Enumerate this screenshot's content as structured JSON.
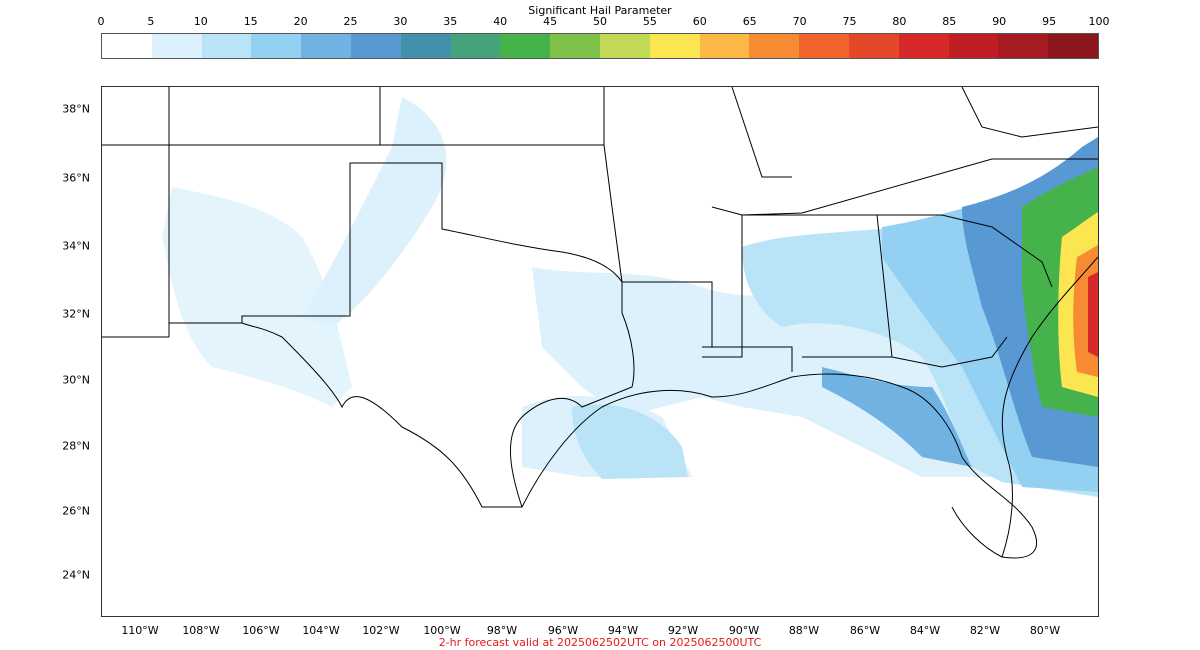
{
  "colorbar": {
    "title": "Significant Hail Parameter",
    "ticks": [
      "0",
      "5",
      "10",
      "15",
      "20",
      "25",
      "30",
      "35",
      "40",
      "45",
      "50",
      "55",
      "60",
      "65",
      "70",
      "75",
      "80",
      "85",
      "90",
      "95",
      "100"
    ],
    "colors": [
      "#ffffff",
      "#dcf1fb",
      "#b9e3f7",
      "#94d0f1",
      "#70b2e2",
      "#5898d3",
      "#4390ad",
      "#45a37c",
      "#45b24c",
      "#7fc24a",
      "#c1d957",
      "#fbe652",
      "#fbb846",
      "#f68b34",
      "#f0632b",
      "#e44829",
      "#d8292a",
      "#c01d25",
      "#a71b22",
      "#8b171c"
    ]
  },
  "map": {
    "lat_labels": [
      "38°N",
      "36°N",
      "34°N",
      "32°N",
      "30°N",
      "28°N",
      "26°N",
      "24°N"
    ],
    "lon_labels": [
      "110°W",
      "108°W",
      "106°W",
      "104°W",
      "102°W",
      "100°W",
      "98°W",
      "96°W",
      "94°W",
      "92°W",
      "90°W",
      "88°W",
      "86°W",
      "84°W",
      "82°W",
      "80°W"
    ]
  },
  "footer": {
    "valid_text": "2-hr forecast valid at 2025062502UTC on 2025062500UTC"
  }
}
